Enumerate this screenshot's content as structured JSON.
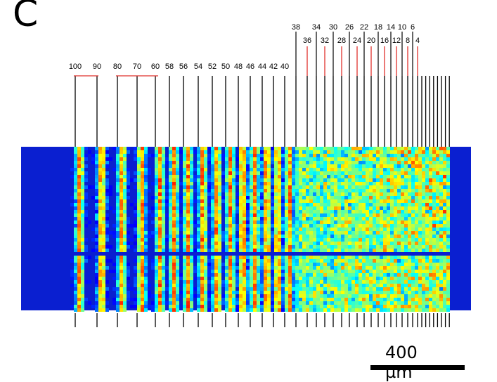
{
  "panel_label": "C",
  "scale_bar": {
    "label": "400 µm"
  },
  "spacings": {
    "all": [
      100,
      90,
      80,
      70,
      60,
      58,
      56,
      54,
      52,
      50,
      48,
      46,
      44,
      42,
      40,
      38,
      36,
      34,
      32,
      30,
      28,
      26,
      24,
      22,
      20,
      18,
      16,
      14,
      12,
      10,
      8,
      6,
      4
    ],
    "top_row_labels": [
      "38",
      "34",
      "30",
      "26",
      "22",
      "18",
      "14",
      "10",
      "6"
    ],
    "mid_row_labels": [
      "36",
      "32",
      "28",
      "24",
      "20",
      "16",
      "12",
      "8",
      "4"
    ],
    "bottom_row_labels": [
      "100",
      "90",
      "80",
      "70",
      "60",
      "58",
      "56",
      "54",
      "52",
      "50",
      "48",
      "46",
      "44",
      "42",
      "40"
    ]
  },
  "colors": {
    "black_line": "#000000",
    "red_line": "#e0312c",
    "heatmap_background": "#0a1fd0",
    "heatmap_colormap": "jet"
  }
}
